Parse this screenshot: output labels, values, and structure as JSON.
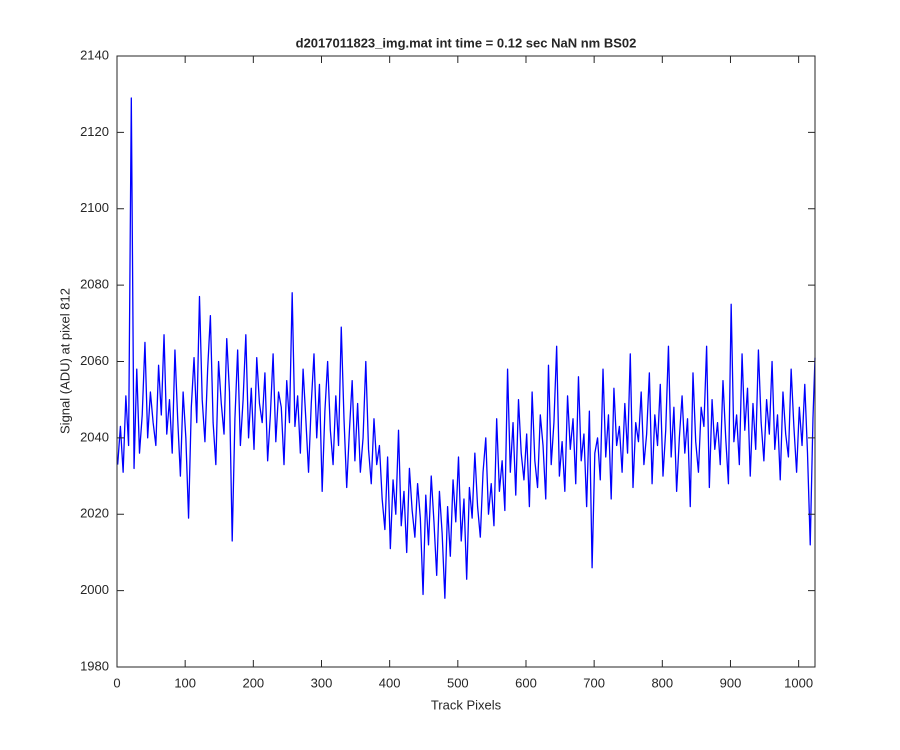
{
  "chart_data": {
    "type": "line",
    "title": "d2017011823_img.mat int time = 0.12 sec  NaN nm BS02",
    "x_label": "Track Pixels",
    "y_label": "Signal (ADU) at pixel 812",
    "color": "#0000ff",
    "xlim": [
      0,
      1024
    ],
    "xticks": [
      0,
      100,
      200,
      300,
      400,
      500,
      600,
      700,
      800,
      900,
      1000
    ],
    "ylim": [
      1980,
      2140
    ],
    "yticks": [
      1980,
      2000,
      2020,
      2040,
      2060,
      2080,
      2100,
      2120,
      2140
    ],
    "x": [
      1,
      5,
      9,
      13,
      17,
      21,
      25,
      29,
      33,
      37,
      41,
      45,
      49,
      53,
      57,
      61,
      65,
      69,
      73,
      77,
      81,
      85,
      89,
      93,
      97,
      101,
      105,
      109,
      113,
      117,
      121,
      125,
      129,
      133,
      137,
      141,
      145,
      149,
      153,
      157,
      161,
      165,
      169,
      173,
      177,
      181,
      185,
      189,
      193,
      197,
      201,
      205,
      209,
      213,
      217,
      221,
      225,
      229,
      233,
      237,
      241,
      245,
      249,
      253,
      257,
      261,
      265,
      269,
      273,
      277,
      281,
      285,
      289,
      293,
      297,
      301,
      305,
      309,
      313,
      317,
      321,
      325,
      329,
      333,
      337,
      341,
      345,
      349,
      353,
      357,
      361,
      365,
      369,
      373,
      377,
      381,
      385,
      389,
      393,
      397,
      401,
      405,
      409,
      413,
      417,
      421,
      425,
      429,
      433,
      437,
      441,
      445,
      449,
      453,
      457,
      461,
      465,
      469,
      473,
      477,
      481,
      485,
      489,
      493,
      497,
      501,
      505,
      509,
      513,
      517,
      521,
      525,
      529,
      533,
      537,
      541,
      545,
      549,
      553,
      557,
      561,
      565,
      569,
      573,
      577,
      581,
      585,
      589,
      593,
      597,
      601,
      605,
      609,
      613,
      617,
      621,
      625,
      629,
      633,
      637,
      641,
      645,
      649,
      653,
      657,
      661,
      665,
      669,
      673,
      677,
      681,
      685,
      689,
      693,
      697,
      701,
      705,
      709,
      713,
      717,
      721,
      725,
      729,
      733,
      737,
      741,
      745,
      749,
      753,
      757,
      761,
      765,
      769,
      773,
      777,
      781,
      785,
      789,
      793,
      797,
      801,
      805,
      809,
      813,
      817,
      821,
      825,
      829,
      833,
      837,
      841,
      845,
      849,
      853,
      857,
      861,
      865,
      869,
      873,
      877,
      881,
      885,
      889,
      893,
      897,
      901,
      905,
      909,
      913,
      917,
      921,
      925,
      929,
      933,
      937,
      941,
      945,
      949,
      953,
      957,
      961,
      965,
      969,
      973,
      977,
      981,
      985,
      989,
      993,
      997,
      1001,
      1005,
      1009,
      1013,
      1017,
      1021,
      1024
    ],
    "values": [
      2033,
      2043,
      2031,
      2051,
      2038,
      2129,
      2032,
      2058,
      2036,
      2046,
      2065,
      2040,
      2052,
      2044,
      2038,
      2059,
      2046,
      2067,
      2041,
      2050,
      2036,
      2063,
      2045,
      2030,
      2052,
      2040,
      2019,
      2048,
      2061,
      2044,
      2077,
      2050,
      2039,
      2058,
      2072,
      2044,
      2033,
      2060,
      2049,
      2041,
      2066,
      2052,
      2013,
      2045,
      2063,
      2038,
      2050,
      2067,
      2040,
      2053,
      2037,
      2061,
      2049,
      2044,
      2057,
      2034,
      2046,
      2062,
      2039,
      2052,
      2048,
      2033,
      2055,
      2044,
      2078,
      2043,
      2051,
      2036,
      2058,
      2045,
      2031,
      2049,
      2062,
      2040,
      2054,
      2026,
      2047,
      2060,
      2042,
      2033,
      2051,
      2038,
      2069,
      2045,
      2027,
      2042,
      2055,
      2034,
      2049,
      2031,
      2040,
      2060,
      2037,
      2028,
      2045,
      2033,
      2038,
      2024,
      2016,
      2035,
      2011,
      2029,
      2020,
      2042,
      2017,
      2026,
      2010,
      2032,
      2021,
      2014,
      2028,
      2019,
      1999,
      2025,
      2012,
      2030,
      2018,
      2004,
      2026,
      2015,
      1998,
      2022,
      2009,
      2029,
      2018,
      2035,
      2013,
      2024,
      2003,
      2027,
      2019,
      2036,
      2022,
      2014,
      2031,
      2040,
      2020,
      2028,
      2017,
      2045,
      2026,
      2034,
      2021,
      2058,
      2031,
      2044,
      2025,
      2050,
      2036,
      2029,
      2041,
      2022,
      2052,
      2034,
      2027,
      2046,
      2038,
      2024,
      2059,
      2033,
      2044,
      2064,
      2030,
      2039,
      2026,
      2051,
      2037,
      2045,
      2028,
      2056,
      2034,
      2041,
      2022,
      2047,
      2006,
      2036,
      2040,
      2029,
      2058,
      2035,
      2046,
      2024,
      2053,
      2038,
      2043,
      2031,
      2049,
      2036,
      2062,
      2027,
      2044,
      2039,
      2052,
      2033,
      2041,
      2057,
      2028,
      2046,
      2038,
      2054,
      2030,
      2042,
      2064,
      2035,
      2048,
      2026,
      2040,
      2051,
      2036,
      2045,
      2022,
      2057,
      2039,
      2031,
      2048,
      2043,
      2064,
      2027,
      2050,
      2037,
      2044,
      2033,
      2055,
      2040,
      2028,
      2075,
      2039,
      2046,
      2033,
      2062,
      2042,
      2053,
      2030,
      2049,
      2037,
      2063,
      2044,
      2034,
      2050,
      2041,
      2060,
      2037,
      2046,
      2029,
      2052,
      2041,
      2035,
      2058,
      2043,
      2031,
      2048,
      2038,
      2054,
      2036,
      2012,
      2045,
      2061
    ]
  }
}
